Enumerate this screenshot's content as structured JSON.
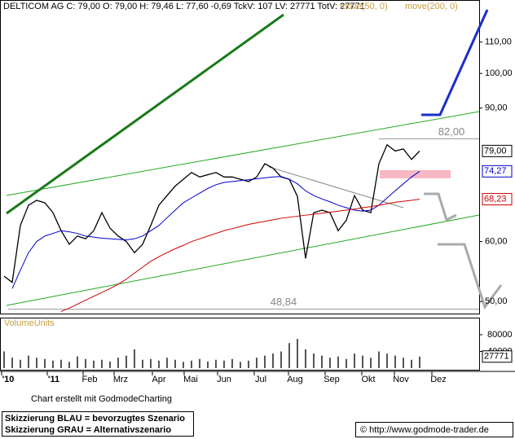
{
  "header": {
    "title": "DELTICOM AG C: 79,00 O: 79,00 H: 79,46 L: 77,60 -0,69 TckV: 107 LV: 27771 TotV: 27771"
  },
  "chart_data": [
    {
      "type": "line",
      "x_labels": [
        "'10",
        "'11",
        "Feb",
        "Mrz",
        "Apr",
        "Mai",
        "Jun",
        "Jul",
        "Aug",
        "Sep",
        "Okt",
        "Nov",
        "Dez"
      ],
      "log_scale": true,
      "ylim": [
        48.2,
        125
      ],
      "yticks": [
        {
          "value": 50,
          "label": "50,00"
        },
        {
          "value": 60,
          "label": "60,00"
        },
        {
          "value": 90,
          "label": "90,00"
        },
        {
          "value": 100,
          "label": "100,00"
        },
        {
          "value": 110,
          "label": "110,00"
        }
      ],
      "levels": [
        {
          "value": 82,
          "label": "82,00"
        },
        {
          "value": 48.84,
          "label": "48,84"
        }
      ],
      "series": [
        {
          "name": "DELTICOM AG",
          "color": "#000000",
          "last_label": "79,00",
          "values": [
            54,
            53,
            63,
            67,
            68,
            67.5,
            65.5,
            62,
            59.5,
            61,
            60.5,
            62,
            65.5,
            62.5,
            61,
            60,
            58,
            59.5,
            63,
            67,
            69,
            71,
            72.5,
            74,
            73,
            73.5,
            74,
            73,
            73,
            72.5,
            72,
            73,
            76,
            75,
            73,
            72.5,
            68.8,
            57,
            65.5,
            66,
            65.5,
            62,
            64,
            69,
            66,
            65.5,
            76,
            80.5,
            79,
            79.5,
            77,
            79
          ]
        },
        {
          "name": "move(50, 0)",
          "color": "#0000cc",
          "last_label": "74,27",
          "values": [
            null,
            52,
            55,
            58,
            60,
            61,
            61.5,
            62,
            61.8,
            61.5,
            61,
            60.8,
            60.6,
            60.5,
            60.4,
            60.3,
            60.5,
            61,
            62,
            63,
            64.5,
            66,
            67.5,
            68.5,
            69.5,
            70.5,
            71.3,
            71.8,
            72,
            72.2,
            72.4,
            72.6,
            72.8,
            73,
            73.1,
            72.5,
            71.5,
            70,
            69,
            68.3,
            67.7,
            67,
            66.5,
            66,
            65.8,
            66,
            67,
            68.5,
            70,
            71.5,
            73,
            74.27
          ]
        },
        {
          "name": "move(200, 0)",
          "color": "#cc0000",
          "last_label": "68,23",
          "values": [
            null,
            null,
            null,
            null,
            null,
            null,
            null,
            48.5,
            49,
            49.6,
            50.2,
            50.8,
            51.4,
            52,
            52.7,
            53.5,
            54.5,
            55.5,
            56.5,
            57.3,
            58,
            58.7,
            59.3,
            60,
            60.5,
            61,
            61.5,
            62,
            62.4,
            62.8,
            63.2,
            63.5,
            63.8,
            64.1,
            64.4,
            64.6,
            64.8,
            65,
            65.2,
            65.4,
            65.6,
            65.8,
            66,
            66.2,
            66.5,
            66.7,
            67,
            67.3,
            67.6,
            67.8,
            68,
            68.23
          ]
        }
      ]
    },
    {
      "type": "bar",
      "title": "VolumeUnits",
      "color": "#555555",
      "ylim": [
        0,
        117000
      ],
      "yticks": [
        40000,
        80000
      ],
      "last_label": "27771",
      "values": [
        40000,
        25000,
        20000,
        30000,
        25000,
        22000,
        18000,
        20000,
        15000,
        28000,
        22000,
        18000,
        20000,
        16000,
        25000,
        30000,
        45000,
        20000,
        22000,
        18000,
        25000,
        20000,
        15000,
        18000,
        22000,
        16000,
        20000,
        18000,
        22000,
        15000,
        18000,
        25000,
        30000,
        35000,
        40000,
        60000,
        70000,
        45000,
        35000,
        30000,
        25000,
        28000,
        22000,
        35000,
        30000,
        25000,
        40000,
        35000,
        30000,
        25000,
        20000,
        27771
      ]
    }
  ],
  "footer": {
    "credit": "Chart erstellt mit GodmodeCharting",
    "note_blue": "Skizzierung BLAU = bevorzugtes Szenario",
    "note_grey": "Skizzierung GRAU = Alternativszenario",
    "url": "© http://www.godmode-trader.de"
  }
}
